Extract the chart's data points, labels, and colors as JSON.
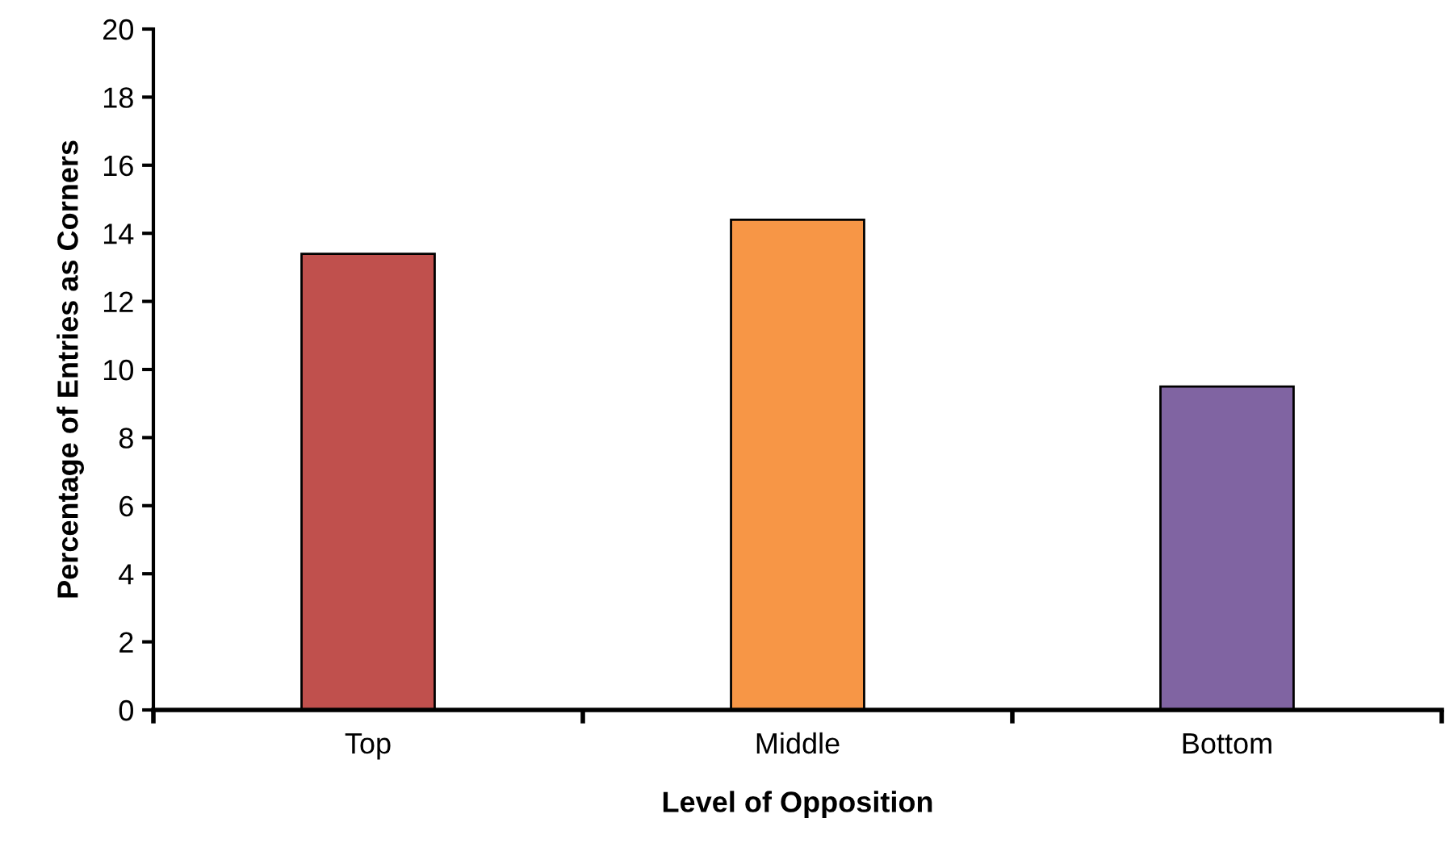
{
  "chart_data": {
    "type": "bar",
    "xlabel": "Level of Opposition",
    "ylabel": "Percentage of Entries as Corners",
    "categories": [
      "Top",
      "Middle",
      "Bottom"
    ],
    "values": [
      13.4,
      14.4,
      9.5
    ],
    "colors": [
      "#c0504d",
      "#f79646",
      "#8064a2"
    ],
    "ylim": [
      0,
      20
    ],
    "yticks": [
      0,
      2,
      4,
      6,
      8,
      10,
      12,
      14,
      16,
      18,
      20
    ],
    "grid": false,
    "legend": false
  }
}
